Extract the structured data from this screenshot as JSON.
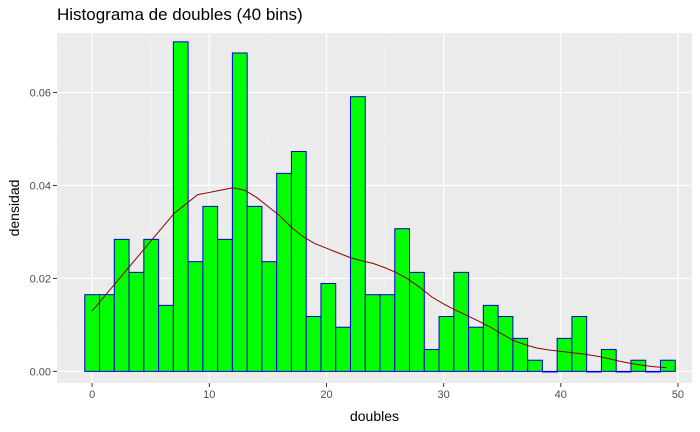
{
  "chart_data": {
    "type": "bar",
    "title": "Histograma de doubles (40 bins)",
    "xlabel": "doubles",
    "ylabel": "densidad",
    "xlim": [
      -3,
      51.2
    ],
    "ylim": [
      -0.0025,
      0.0728
    ],
    "x_ticks": [
      0,
      10,
      20,
      30,
      40,
      50
    ],
    "y_ticks": [
      0.0,
      0.02,
      0.04,
      0.06
    ],
    "y_tick_labels": [
      "0.00",
      "0.02",
      "0.04",
      "0.06"
    ],
    "grid": true,
    "bin_width": 1.26,
    "bin_starts": [
      -0.63,
      0.63,
      1.89,
      3.15,
      4.41,
      5.67,
      6.93,
      8.19,
      9.45,
      10.71,
      11.97,
      13.23,
      14.49,
      15.75,
      17.01,
      18.27,
      19.53,
      20.79,
      22.05,
      23.31,
      24.57,
      25.83,
      27.09,
      28.35,
      29.61,
      30.87,
      32.13,
      33.39,
      34.65,
      35.91,
      37.17,
      38.43,
      39.69,
      40.95,
      42.21,
      43.47,
      44.73,
      45.99,
      47.25,
      48.51
    ],
    "values": [
      0.0165,
      0.0165,
      0.0284,
      0.0213,
      0.0284,
      0.0142,
      0.0709,
      0.0236,
      0.0355,
      0.0284,
      0.0685,
      0.0355,
      0.0236,
      0.0426,
      0.0473,
      0.0118,
      0.0189,
      0.0095,
      0.0591,
      0.0165,
      0.0165,
      0.0307,
      0.0213,
      0.0047,
      0.0118,
      0.0213,
      0.0095,
      0.0142,
      0.0118,
      0.0071,
      0.0024,
      0.0,
      0.0071,
      0.0118,
      0.0,
      0.0047,
      0.0,
      0.0024,
      0.0,
      0.0024
    ],
    "density_curve": {
      "x": [
        0,
        1,
        2,
        3,
        4,
        5,
        6,
        7,
        8,
        9,
        10,
        11,
        12,
        13,
        14,
        15,
        16,
        17,
        18,
        19,
        20,
        21,
        22,
        23,
        24,
        25,
        26,
        27,
        28,
        29,
        30,
        31,
        32,
        33,
        34,
        35,
        36,
        37,
        38,
        39,
        40,
        41,
        42,
        43,
        44,
        45,
        46,
        47,
        48,
        49
      ],
      "y": [
        0.013,
        0.016,
        0.019,
        0.022,
        0.025,
        0.028,
        0.031,
        0.034,
        0.036,
        0.038,
        0.0385,
        0.039,
        0.0395,
        0.039,
        0.0375,
        0.0355,
        0.0335,
        0.031,
        0.029,
        0.0275,
        0.0265,
        0.0255,
        0.0245,
        0.0238,
        0.0232,
        0.0223,
        0.0212,
        0.0198,
        0.018,
        0.016,
        0.0145,
        0.0132,
        0.012,
        0.0108,
        0.0095,
        0.008,
        0.0066,
        0.0057,
        0.005,
        0.0046,
        0.0043,
        0.004,
        0.0037,
        0.0033,
        0.0028,
        0.0022,
        0.0017,
        0.0013,
        0.001,
        0.0008
      ]
    },
    "colors": {
      "panel_background": "#ebebeb",
      "grid_major": "#ffffff",
      "grid_minor": "#f5f5f5",
      "bar_fill": "#00ff00",
      "bar_outline": "#0000cd",
      "density_line": "#8b0000",
      "tick_label": "#4d4d4d"
    }
  }
}
